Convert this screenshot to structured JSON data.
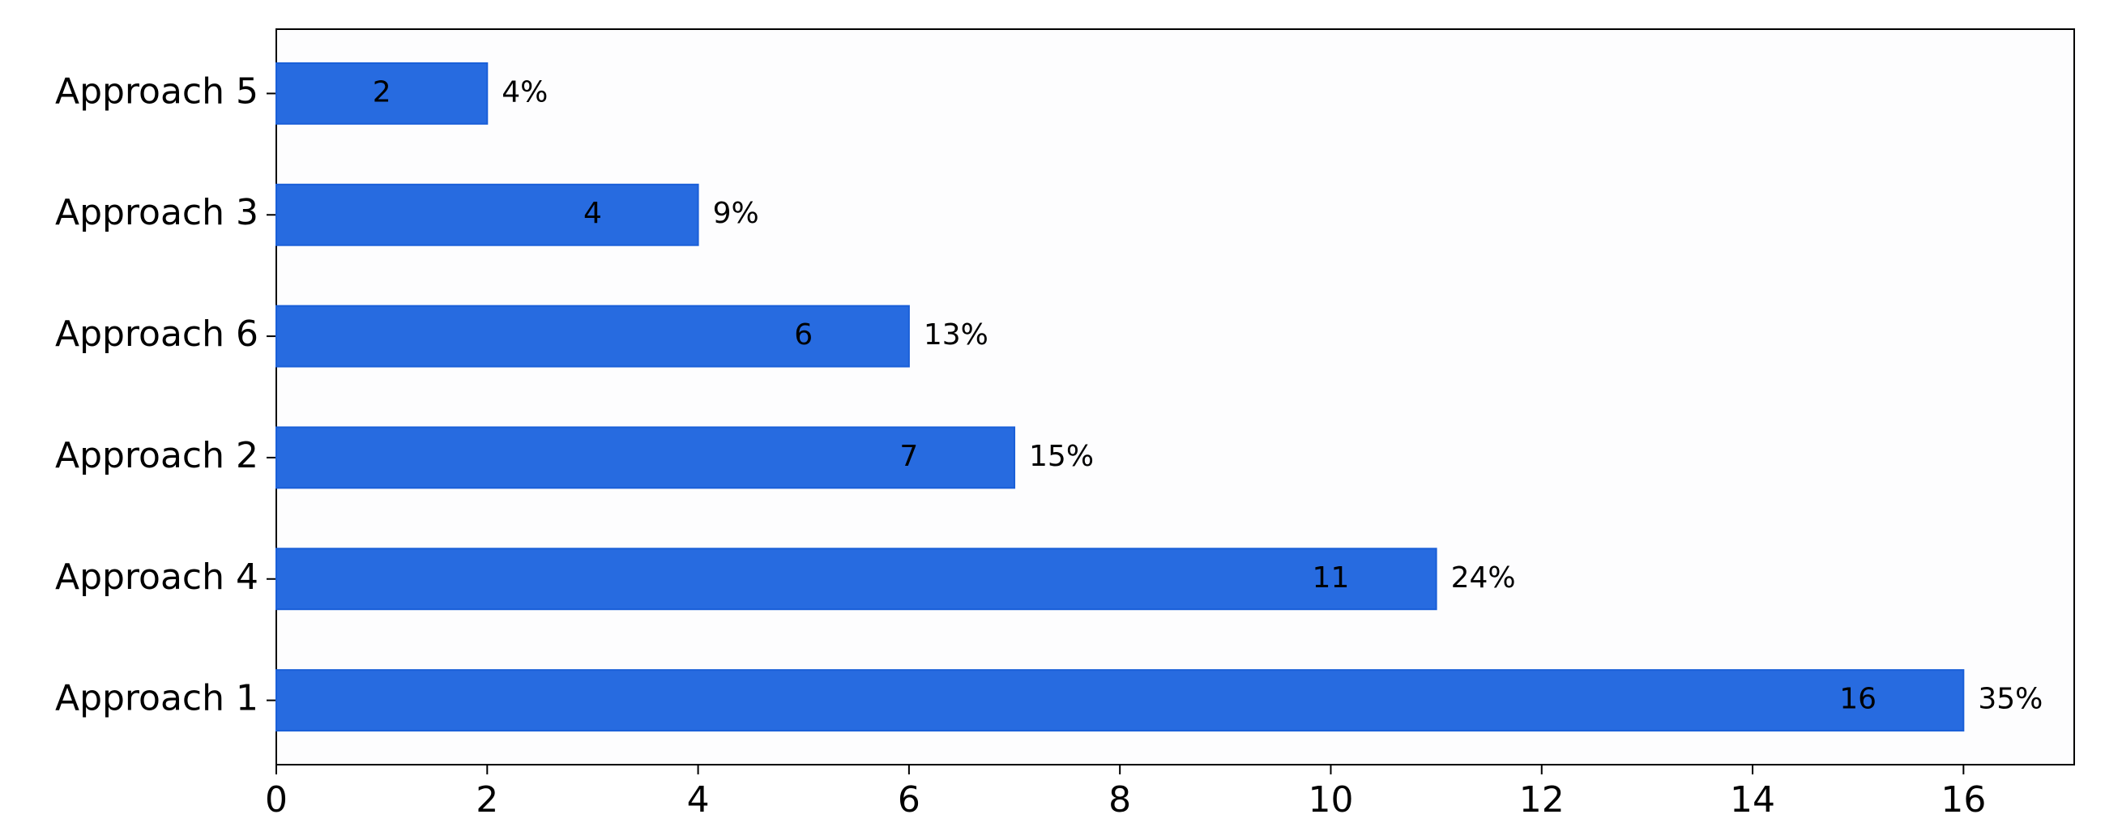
{
  "chart_data": {
    "type": "barh",
    "categories": [
      "Approach 1",
      "Approach 4",
      "Approach 2",
      "Approach 6",
      "Approach 3",
      "Approach 5"
    ],
    "values": [
      16,
      11,
      7,
      6,
      4,
      2
    ],
    "shares": {
      "values": [
        35,
        24,
        15,
        13,
        9,
        4
      ],
      "value_labels": [
        "35%",
        "24%",
        "15%",
        "13%",
        "9%",
        "4%"
      ]
    },
    "color": "#276be0",
    "xlim": [
      0,
      17.05
    ],
    "xticks": [
      0,
      2,
      4,
      6,
      8,
      10,
      12,
      14,
      16
    ],
    "grid": false
  }
}
